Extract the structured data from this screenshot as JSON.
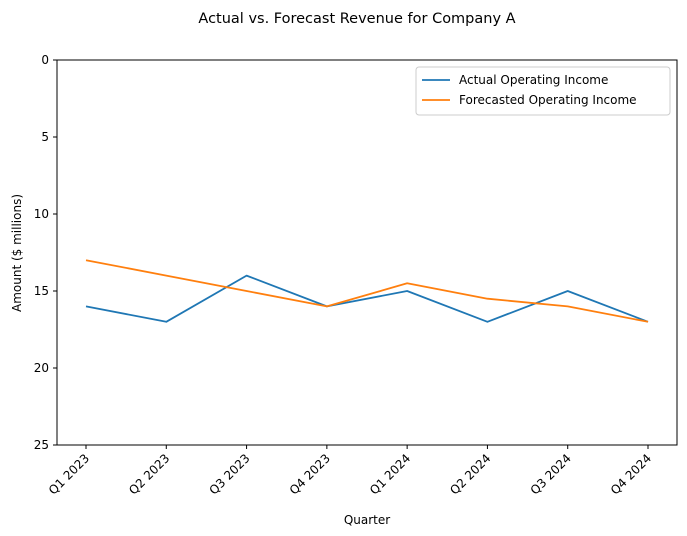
{
  "chart_data": {
    "type": "line",
    "title": "Actual vs. Forecast Revenue for Company A",
    "xlabel": "Quarter",
    "ylabel": "Amount ($ millions)",
    "categories": [
      "Q1 2023",
      "Q2 2023",
      "Q3 2023",
      "Q4 2023",
      "Q1 2024",
      "Q2 2024",
      "Q3 2024",
      "Q4 2024"
    ],
    "ylim": [
      25,
      0
    ],
    "y_inverted": true,
    "yticks": [
      "0",
      "5",
      "10",
      "15",
      "20",
      "25"
    ],
    "grid": false,
    "legend_position": "top-right",
    "series": [
      {
        "name": "Actual Operating Income",
        "values": [
          16,
          17,
          14,
          16,
          15,
          17,
          15,
          17
        ],
        "color": "#1f77b4"
      },
      {
        "name": "Forecasted Operating Income",
        "values": [
          13,
          14,
          15,
          16,
          14.5,
          15.5,
          16,
          17
        ],
        "color": "#ff7f0e"
      }
    ]
  }
}
